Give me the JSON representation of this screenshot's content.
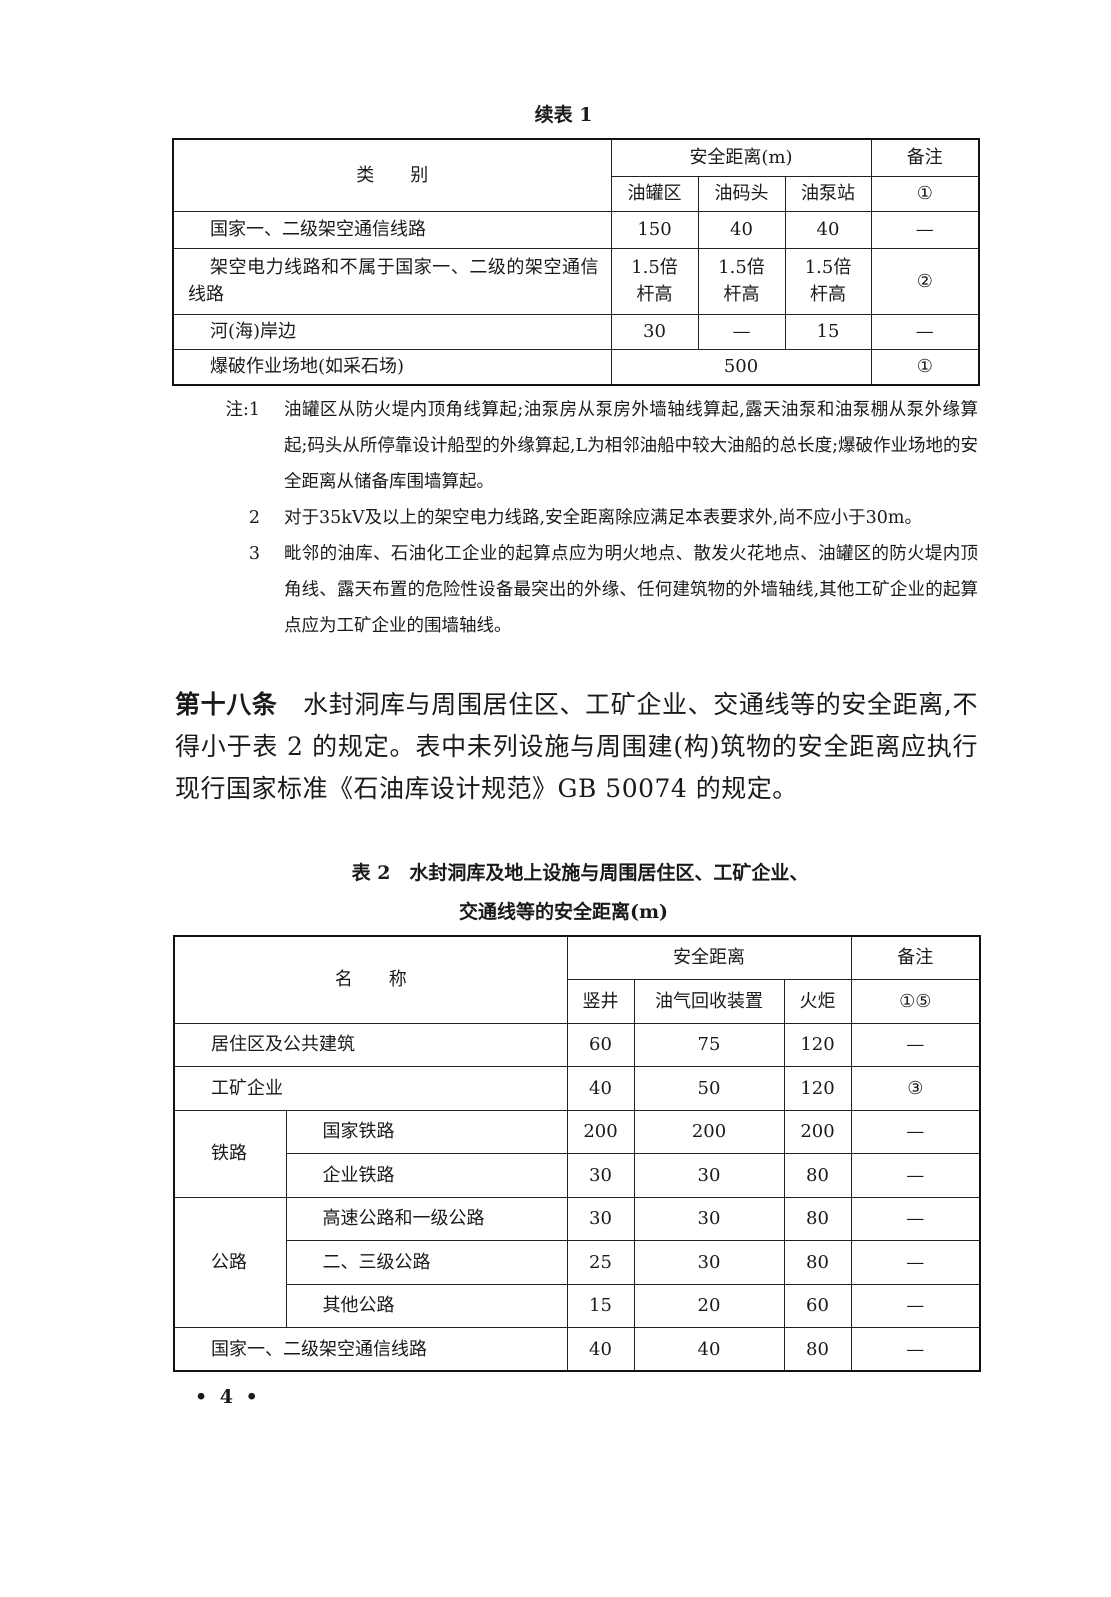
{
  "table1": {
    "caption": "续表 1",
    "header": {
      "category": "类　　别",
      "distance": "安全距离(m)",
      "remark": "备注",
      "sub": [
        "油罐区",
        "油码头",
        "油泵站"
      ],
      "remark_sub": "①"
    },
    "rows": [
      {
        "name": "国家一、二级架空通信线路",
        "values": [
          "150",
          "40",
          "40"
        ],
        "remark": "—"
      },
      {
        "name": "架空电力线路和不属于国家一、二级的架空通信线路",
        "values": [
          "1.5倍杆高",
          "1.5倍杆高",
          "1.5倍杆高"
        ],
        "remark": "②"
      },
      {
        "name": "河(海)岸边",
        "values": [
          "30",
          "—",
          "15"
        ],
        "remark": "—"
      },
      {
        "name": "爆破作业场地(如采石场)",
        "merged_value": "500",
        "remark": "①"
      }
    ]
  },
  "notes": [
    {
      "label": "注:1",
      "text": "油罐区从防火堤内顶角线算起;油泵房从泵房外墙轴线算起,露天油泵和油泵棚从泵外缘算起;码头从所停靠设计船型的外缘算起,L为相邻油船中较大油船的总长度;爆破作业场地的安全距离从储备库围墙算起。"
    },
    {
      "label": "2",
      "text": "对于35kV及以上的架空电力线路,安全距离除应满足本表要求外,尚不应小于30m。"
    },
    {
      "label": "3",
      "text": "毗邻的油库、石油化工企业的起算点应为明火地点、散发火花地点、油罐区的防火堤内顶角线、露天布置的危险性设备最突出的外缘、任何建筑物的外墙轴线,其他工矿企业的起算点应为工矿企业的围墙轴线。"
    }
  ],
  "article": {
    "heading": "第十八条",
    "text": "水封洞库与周围居住区、工矿企业、交通线等的安全距离,不得小于表 2 的规定。表中未列设施与周围建(构)筑物的安全距离应执行现行国家标准《石油库设计规范》GB 50074 的规定。"
  },
  "table2": {
    "caption_line1": "表 2　水封洞库及地上设施与周围居住区、工矿企业、",
    "caption_line2": "交通线等的安全距离(m)",
    "header": {
      "name": "名　　称",
      "distance": "安全距离",
      "remark": "备注",
      "sub": [
        "竖井",
        "油气回收装置",
        "火炬"
      ],
      "remark_sub": "①⑤"
    },
    "rows": [
      {
        "group": "",
        "name": "居住区及公共建筑",
        "values": [
          "60",
          "75",
          "120"
        ],
        "remark": "—"
      },
      {
        "group": "",
        "name": "工矿企业",
        "values": [
          "40",
          "50",
          "120"
        ],
        "remark": "③"
      },
      {
        "group": "铁路",
        "name": "国家铁路",
        "values": [
          "200",
          "200",
          "200"
        ],
        "remark": "—"
      },
      {
        "group": "铁路",
        "name": "企业铁路",
        "values": [
          "30",
          "30",
          "80"
        ],
        "remark": "—"
      },
      {
        "group": "公路",
        "name": "高速公路和一级公路",
        "values": [
          "30",
          "30",
          "80"
        ],
        "remark": "—"
      },
      {
        "group": "公路",
        "name": "二、三级公路",
        "values": [
          "25",
          "30",
          "80"
        ],
        "remark": "—"
      },
      {
        "group": "公路",
        "name": "其他公路",
        "values": [
          "15",
          "20",
          "60"
        ],
        "remark": "—"
      },
      {
        "group": "",
        "name": "国家一、二级架空通信线路",
        "values": [
          "40",
          "40",
          "80"
        ],
        "remark": "—"
      }
    ]
  },
  "page_number": "• 4 •"
}
